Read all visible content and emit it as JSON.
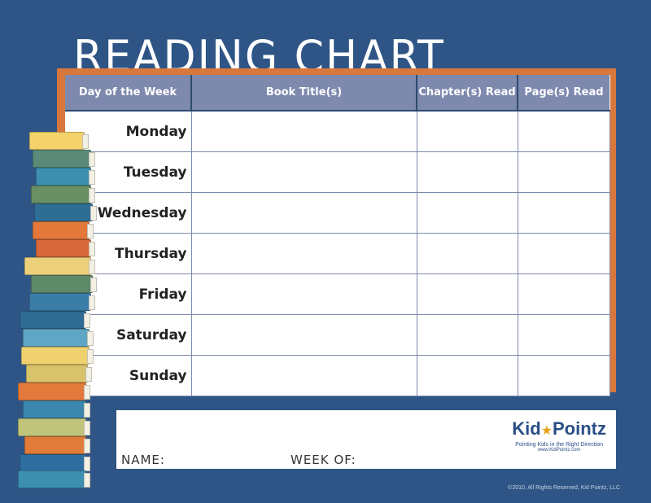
{
  "title": "READING CHART",
  "table": {
    "headers": [
      "Day of the Week",
      "Book Title(s)",
      "Chapter(s) Read",
      "Page(s) Read"
    ],
    "days": [
      "Monday",
      "Tuesday",
      "Wednesday",
      "Thursday",
      "Friday",
      "Saturday",
      "Sunday"
    ]
  },
  "footer": {
    "name_label": "NAME:",
    "week_label": "WEEK OF:",
    "logo_kid": "Kid",
    "logo_pointz": "Pointz",
    "tagline": "Pointing Kids in the Right Direction",
    "url": "www.KidPointz.com"
  },
  "copyright": "©2010, All Rights Reserved, Kid Pointz, LLC",
  "colors": {
    "background": "#2e5585",
    "header": "#7d89ad",
    "frame": "#d8783d"
  }
}
